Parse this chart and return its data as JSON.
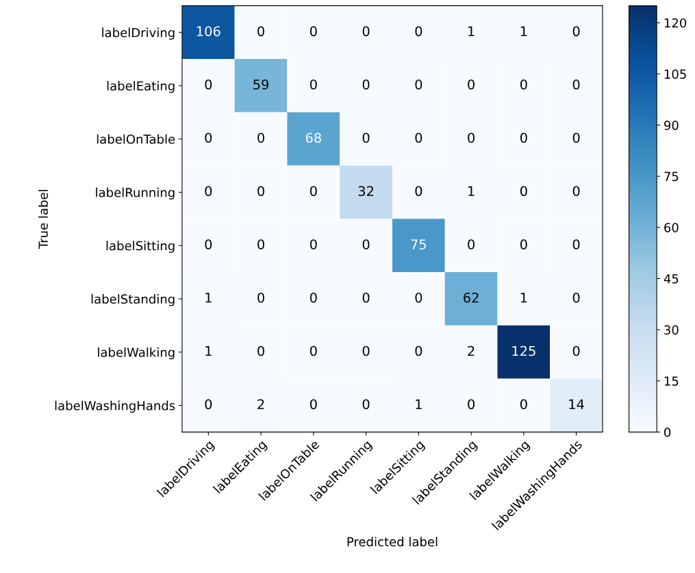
{
  "chart_data": {
    "type": "heatmap",
    "xlabel": "Predicted label",
    "ylabel": "True label",
    "categories": [
      "labelDriving",
      "labelEating",
      "labelOnTable",
      "labelRunning",
      "labelSitting",
      "labelStanding",
      "labelWalking",
      "labelWashingHands"
    ],
    "y_categories": [
      "labelDriving",
      "labelEating",
      "labelOnTable",
      "labelRunning",
      "labelSitting",
      "labelStanding",
      "labelWalking",
      "labelWashingHands"
    ],
    "cells": [
      [
        106,
        0,
        0,
        0,
        0,
        1,
        1,
        0
      ],
      [
        0,
        59,
        0,
        0,
        0,
        0,
        0,
        0
      ],
      [
        0,
        0,
        68,
        0,
        0,
        0,
        0,
        0
      ],
      [
        0,
        0,
        0,
        32,
        0,
        1,
        0,
        0
      ],
      [
        0,
        0,
        0,
        0,
        75,
        0,
        0,
        0
      ],
      [
        1,
        0,
        0,
        0,
        0,
        62,
        1,
        0
      ],
      [
        1,
        0,
        0,
        0,
        0,
        2,
        125,
        0
      ],
      [
        0,
        2,
        0,
        0,
        1,
        0,
        0,
        14
      ]
    ],
    "clim": [
      0,
      125
    ],
    "cticks": [
      0,
      15,
      30,
      45,
      60,
      75,
      90,
      105,
      120
    ],
    "data_labels": true,
    "grid": false
  }
}
